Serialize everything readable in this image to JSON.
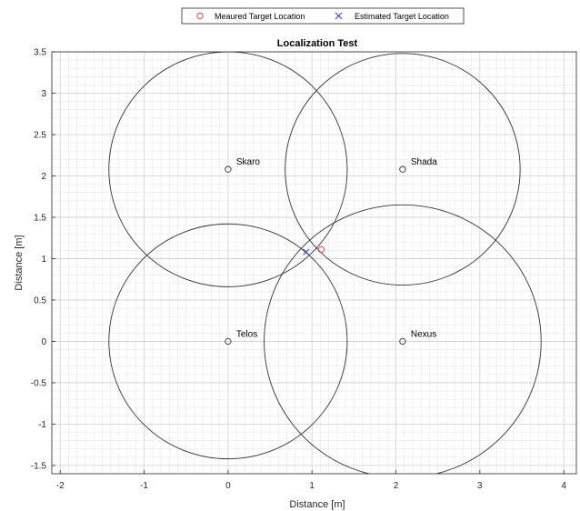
{
  "chart_data": {
    "type": "scatter",
    "title": "Localization Test",
    "xlabel": "Distance [m]",
    "ylabel": "Distance [m]",
    "xlim": [
      -2.1,
      4.15
    ],
    "ylim": [
      -1.6,
      3.5
    ],
    "xticks": [
      -2,
      -1,
      0,
      1,
      2,
      3,
      4
    ],
    "xtick_labels": [
      "-2",
      "-1",
      "0",
      "1",
      "2",
      "3",
      "4"
    ],
    "yticks": [
      -1.5,
      -1,
      -0.5,
      0,
      0.5,
      1,
      1.5,
      2,
      2.5,
      3,
      3.5
    ],
    "ytick_labels": [
      "-1.5",
      "-1",
      "-0.5",
      "0",
      "0.5",
      "1",
      "1.5",
      "2",
      "2.5",
      "3",
      "3.5"
    ],
    "grid": true,
    "minor_grid": true,
    "legend": {
      "position": "top-center",
      "orientation": "horizontal",
      "entries": [
        {
          "label": "Meaured Target Location",
          "marker": "circle",
          "color": "#e8473b"
        },
        {
          "label": "Estimated Target Location",
          "marker": "x",
          "color": "#3b3bdc"
        }
      ]
    },
    "anchors": [
      {
        "name": "Skaro",
        "x": 0,
        "y": 2.08,
        "range": 1.42
      },
      {
        "name": "Shada",
        "x": 2.08,
        "y": 2.08,
        "range": 1.4
      },
      {
        "name": "Telos",
        "x": 0,
        "y": 0,
        "range": 1.42
      },
      {
        "name": "Nexus",
        "x": 2.08,
        "y": 0,
        "range": 1.65
      }
    ],
    "series": [
      {
        "name": "Meaured Target Location",
        "x": [
          1.11
        ],
        "y": [
          1.11
        ]
      },
      {
        "name": "Estimated Target Location",
        "x": [
          0.93
        ],
        "y": [
          1.08
        ]
      }
    ],
    "colors": {
      "circle": "#333333",
      "measured": "#e8473b",
      "estimated": "#3b3bdc"
    }
  }
}
